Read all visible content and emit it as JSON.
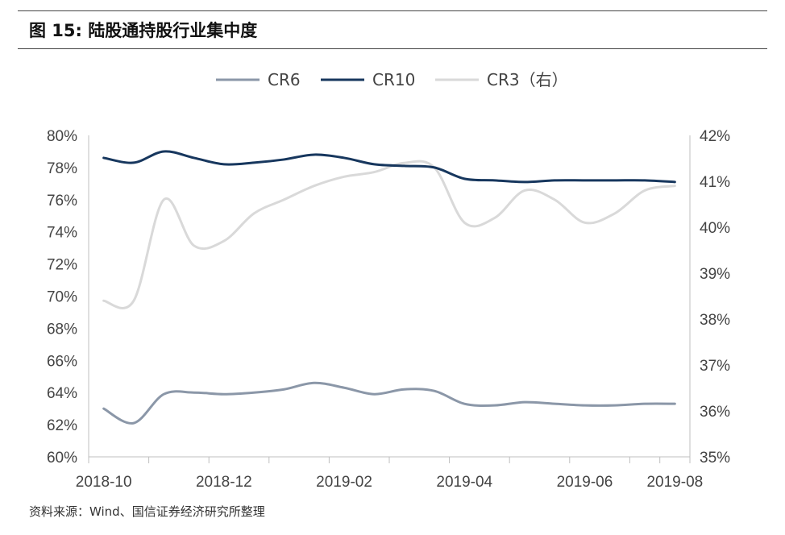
{
  "figure": {
    "title": "图 15:  陆股通持股行业集中度",
    "source": "资料来源：Wind、国信证券经济研究所整理"
  },
  "chart_data": {
    "type": "line",
    "x": [
      "2018-10",
      "2018-11a",
      "2018-11b",
      "2018-12a",
      "2018-12b",
      "2019-01a",
      "2019-01b",
      "2019-02a",
      "2019-02b",
      "2019-03a",
      "2019-03b",
      "2019-04a",
      "2019-04b",
      "2019-05a",
      "2019-05b",
      "2019-06a",
      "2019-06b",
      "2019-07a",
      "2019-07b",
      "2019-08"
    ],
    "x_tick_labels": [
      "2018-10",
      "2018-12",
      "2019-02",
      "2019-04",
      "2019-06",
      "2019-08"
    ],
    "y_left_ticks": [
      "80%",
      "78%",
      "76%",
      "74%",
      "72%",
      "70%",
      "68%",
      "66%",
      "64%",
      "62%",
      "60%"
    ],
    "y_right_ticks": [
      "42%",
      "41%",
      "40%",
      "39%",
      "38%",
      "37%",
      "36%",
      "35%"
    ],
    "ylim_left": [
      60,
      80
    ],
    "ylim_right": [
      35,
      42
    ],
    "legend_position": "top",
    "series": [
      {
        "name": "CR6",
        "axis": "left",
        "color": "#8b97a8",
        "values": [
          63.0,
          62.1,
          63.9,
          64.0,
          63.9,
          64.0,
          64.2,
          64.6,
          64.3,
          63.9,
          64.2,
          64.1,
          63.3,
          63.2,
          63.4,
          63.3,
          63.2,
          63.2,
          63.3,
          63.3
        ]
      },
      {
        "name": "CR10",
        "axis": "left",
        "color": "#17375e",
        "values": [
          78.6,
          78.3,
          79.0,
          78.6,
          78.2,
          78.3,
          78.5,
          78.8,
          78.6,
          78.2,
          78.1,
          78.0,
          77.3,
          77.2,
          77.1,
          77.2,
          77.2,
          77.2,
          77.2,
          77.1
        ]
      },
      {
        "name": "CR3（右）",
        "axis": "right",
        "color": "#d9d9d9",
        "values": [
          38.4,
          38.4,
          40.6,
          39.6,
          39.7,
          40.3,
          40.6,
          40.9,
          41.1,
          41.2,
          41.4,
          41.3,
          40.1,
          40.2,
          40.8,
          40.6,
          40.1,
          40.3,
          40.8,
          40.9
        ]
      }
    ]
  }
}
